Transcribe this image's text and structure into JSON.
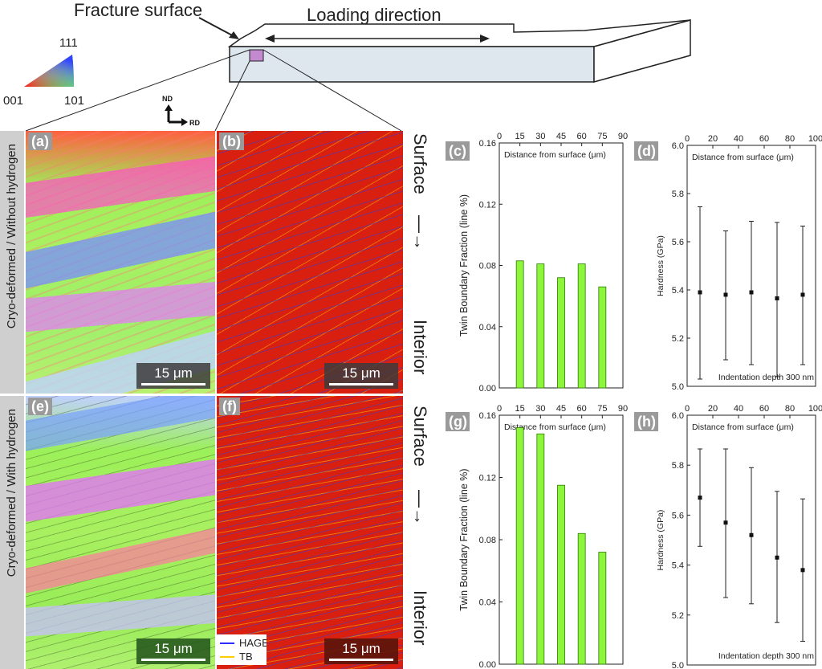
{
  "schematic": {
    "fracture_label": "Fracture surface",
    "loading_label": "Loading direction",
    "orientation_labels": {
      "nd": "ND",
      "rd": "RD"
    },
    "ipf_labels": {
      "top": "111",
      "bottom_left": "001",
      "bottom_right": "101"
    }
  },
  "rows": [
    {
      "label": "Cryo-deformed / Without hydrogen"
    },
    {
      "label": "Cryo-deformed / With hydrogen"
    }
  ],
  "panels": {
    "a": "(a)",
    "b": "(b)",
    "c": "(c)",
    "d": "(d)",
    "e": "(e)",
    "f": "(f)",
    "g": "(g)",
    "h": "(h)"
  },
  "scale_bar": "15 μm",
  "depth_labels": {
    "top": "Surface",
    "bottom": "Interior",
    "arrow": "—→"
  },
  "map_legend": {
    "hagb": "HAGB",
    "tb": "TB",
    "hagb_color": "#2d2dff",
    "tb_color": "#ffcc00"
  },
  "colors": {
    "bar_fill": "#8cf53c",
    "bar_stroke": "#2a7a00",
    "map_red": "#d92010"
  },
  "chart_data": [
    {
      "id": "c",
      "type": "bar",
      "x": [
        15,
        30,
        45,
        60,
        75
      ],
      "values": [
        0.083,
        0.081,
        0.072,
        0.081,
        0.066
      ],
      "xlabel": "Distance from surface (μm)",
      "ylabel": "Twin Boundary Fraction (line %)",
      "xlim": [
        0,
        90
      ],
      "ylim": [
        0,
        0.16
      ],
      "xticks": [
        "0",
        "15",
        "30",
        "45",
        "60",
        "75",
        "90"
      ],
      "yticks": [
        "0.00",
        "0.04",
        "0.08",
        "0.12",
        "0.16"
      ]
    },
    {
      "id": "d",
      "type": "scatter",
      "x": [
        10,
        30,
        50,
        70,
        90
      ],
      "values": [
        5.39,
        5.38,
        5.39,
        5.365,
        5.38
      ],
      "err_high": [
        5.745,
        5.645,
        5.685,
        5.68,
        5.665
      ],
      "err_low": [
        5.03,
        5.11,
        5.09,
        5.04,
        5.09
      ],
      "xlabel": "Distance from surface (μm)",
      "ylabel": "Hardness (GPa)",
      "note": "Indentation depth 300 nm",
      "xlim": [
        0,
        100
      ],
      "ylim": [
        5.0,
        6.0
      ],
      "xticks": [
        "0",
        "20",
        "40",
        "60",
        "80",
        "100"
      ],
      "yticks": [
        "5.0",
        "5.2",
        "5.4",
        "5.6",
        "5.8",
        "6.0"
      ]
    },
    {
      "id": "g",
      "type": "bar",
      "x": [
        15,
        30,
        45,
        60,
        75
      ],
      "values": [
        0.152,
        0.148,
        0.115,
        0.084,
        0.072
      ],
      "xlabel": "Distance from surface (μm)",
      "ylabel": "Twin Boundary Fraction (line %)",
      "xlim": [
        0,
        90
      ],
      "ylim": [
        0,
        0.16
      ],
      "xticks": [
        "0",
        "15",
        "30",
        "45",
        "60",
        "75",
        "90"
      ],
      "yticks": [
        "0.00",
        "0.04",
        "0.08",
        "0.12",
        "0.16"
      ]
    },
    {
      "id": "h",
      "type": "scatter",
      "x": [
        10,
        30,
        50,
        70,
        90
      ],
      "values": [
        5.67,
        5.57,
        5.52,
        5.43,
        5.38
      ],
      "err_high": [
        5.865,
        5.865,
        5.79,
        5.695,
        5.665
      ],
      "err_low": [
        5.475,
        5.27,
        5.245,
        5.17,
        5.095
      ],
      "xlabel": "Distance from surface (μm)",
      "ylabel": "Hardness (GPa)",
      "note": "Indentation depth 300 nm",
      "xlim": [
        0,
        100
      ],
      "ylim": [
        5.0,
        6.0
      ],
      "xticks": [
        "0",
        "20",
        "40",
        "60",
        "80",
        "100"
      ],
      "yticks": [
        "5.0",
        "5.2",
        "5.4",
        "5.6",
        "5.8",
        "6.0"
      ]
    }
  ]
}
